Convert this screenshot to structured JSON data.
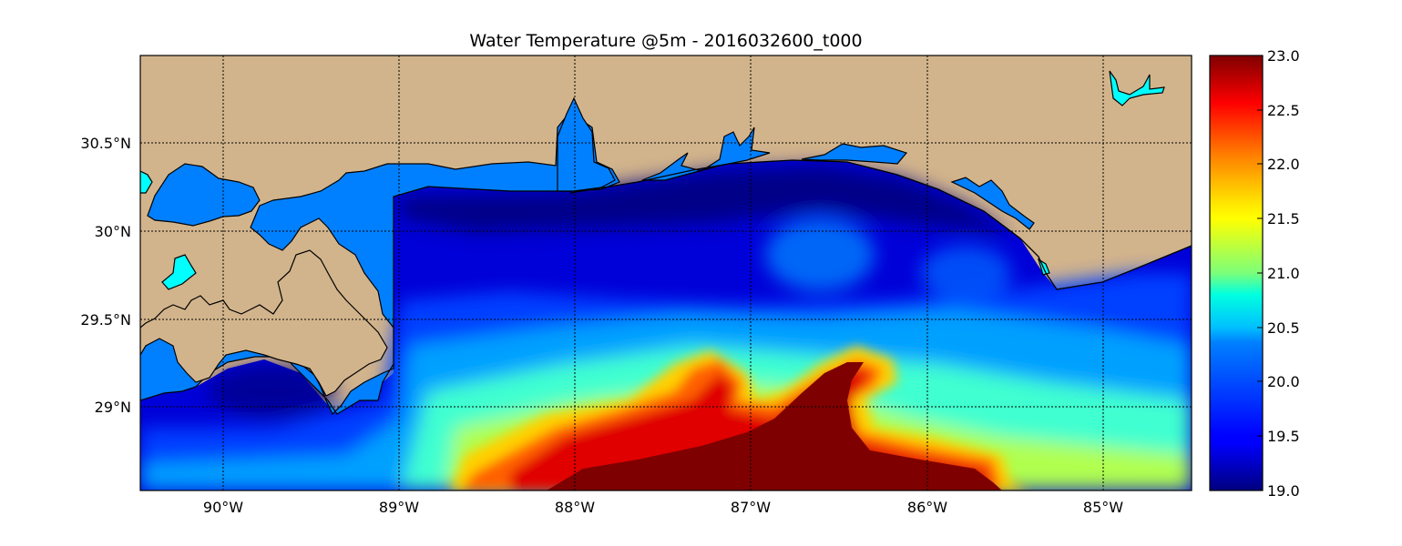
{
  "title": "Water Temperature @5m - 2016032600_t000",
  "map": {
    "lon_range": [
      -90.5,
      -84.5
    ],
    "lat_range": [
      28.55,
      31.0
    ],
    "lon_ticks": [
      {
        "value": -90,
        "label": "90°W"
      },
      {
        "value": -89,
        "label": "89°W"
      },
      {
        "value": -88,
        "label": "88°W"
      },
      {
        "value": -87,
        "label": "87°W"
      },
      {
        "value": -86,
        "label": "86°W"
      },
      {
        "value": -85,
        "label": "85°W"
      }
    ],
    "lat_ticks": [
      {
        "value": 29.0,
        "label": "29°N"
      },
      {
        "value": 29.5,
        "label": "29.5°N"
      },
      {
        "value": 30.0,
        "label": "30°N"
      },
      {
        "value": 30.5,
        "label": "30.5°N"
      }
    ],
    "gridlines": "dotted",
    "land_color": "#d2b48c",
    "inland_water_color": "#0080ff",
    "lake_color": "#00ffff"
  },
  "colorbar": {
    "min": 19.0,
    "max": 23.0,
    "ticks": [
      "19.0",
      "19.5",
      "20.0",
      "20.5",
      "21.0",
      "21.5",
      "22.0",
      "22.5",
      "23.0"
    ],
    "colormap": "jet"
  }
}
